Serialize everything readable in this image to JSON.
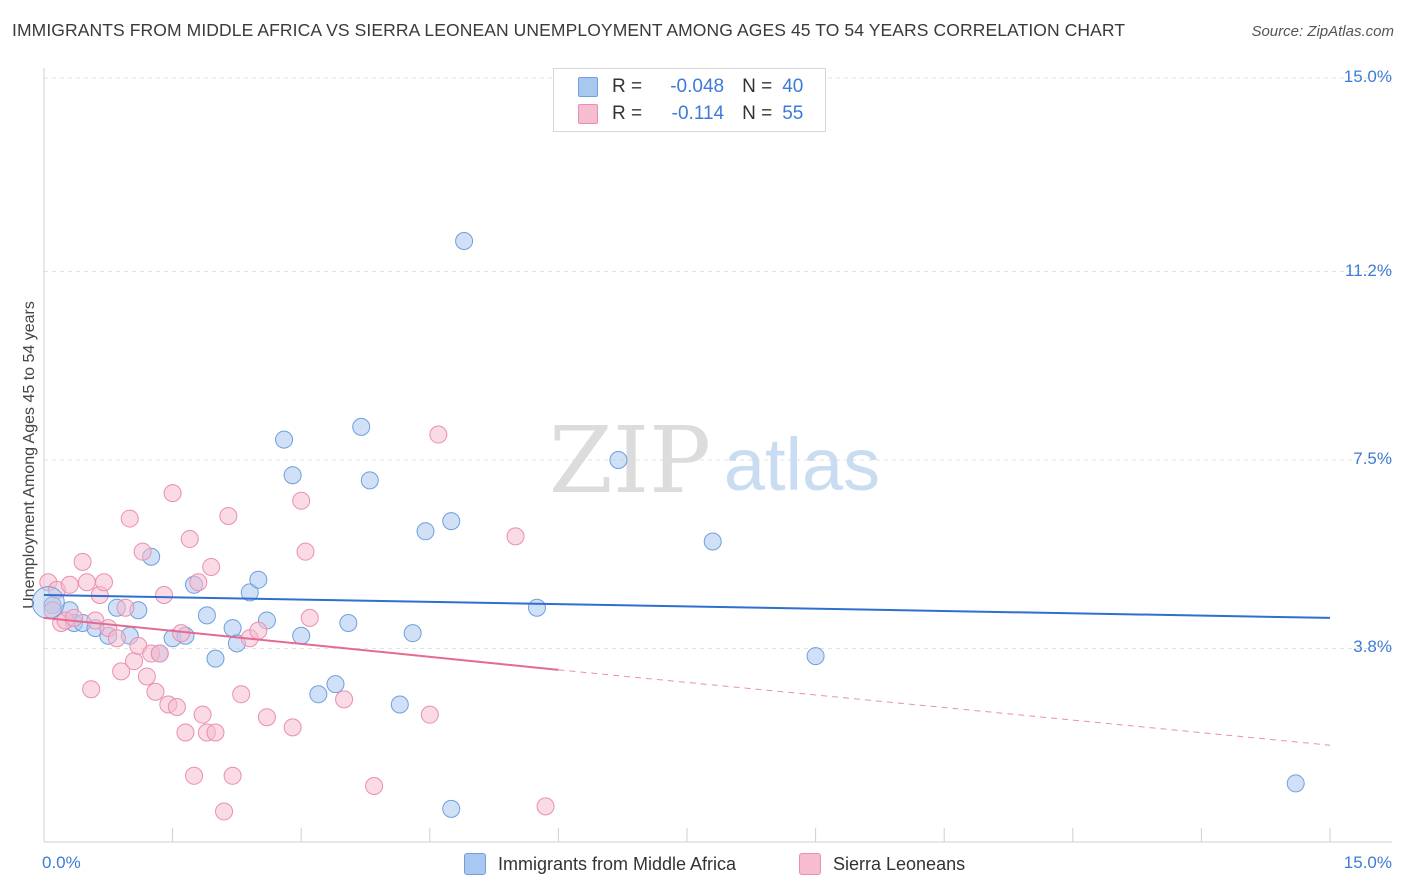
{
  "title": "IMMIGRANTS FROM MIDDLE AFRICA VS SIERRA LEONEAN UNEMPLOYMENT AMONG AGES 45 TO 54 YEARS CORRELATION CHART",
  "source": "Source: ZipAtlas.com",
  "watermark": {
    "zip": "ZIP",
    "atlas": "atlas"
  },
  "legend": {
    "r_label": "R =",
    "n_label": "N =",
    "rows": [
      {
        "r": "-0.048",
        "n": "40",
        "color": "#a9c8f0",
        "border": "#6f9fdc"
      },
      {
        "r": "-0.114",
        "n": "55",
        "color": "#f6bcd0",
        "border": "#e98fb0"
      }
    ]
  },
  "bottom_legend": [
    {
      "label": "Immigrants from Middle Africa",
      "color": "#a9c8f0",
      "border": "#6f9fdc"
    },
    {
      "label": "Sierra Leoneans",
      "color": "#f6bcd0",
      "border": "#e98fb0"
    }
  ],
  "chart_data": {
    "type": "scatter",
    "title": "IMMIGRANTS FROM MIDDLE AFRICA VS SIERRA LEONEAN UNEMPLOYMENT AMONG AGES 45 TO 54 YEARS CORRELATION CHART",
    "xlabel": "",
    "ylabel": "Unemployment Among Ages 45 to 54 years",
    "xlim": [
      0,
      15
    ],
    "ylim": [
      0,
      15.6
    ],
    "x_tick_labels": [
      "0.0%",
      "15.0%"
    ],
    "y_ticks": [
      3.8,
      7.5,
      11.2,
      15.0
    ],
    "y_tick_labels": [
      "3.8%",
      "7.5%",
      "11.2%",
      "15.0%"
    ],
    "series": [
      {
        "name": "Immigrants from Middle Africa",
        "color": "#6f9fdc",
        "fill": "#a9c8f0",
        "r": -0.048,
        "n": 40,
        "trend": {
          "x0": 0.0,
          "y0": 4.85,
          "x1": 15.0,
          "y1": 4.4
        },
        "points": [
          [
            0.1,
            4.65
          ],
          [
            0.3,
            4.55
          ],
          [
            0.35,
            4.3
          ],
          [
            0.45,
            4.3
          ],
          [
            0.6,
            4.2
          ],
          [
            0.75,
            4.05
          ],
          [
            0.85,
            4.6
          ],
          [
            1.0,
            4.05
          ],
          [
            1.1,
            4.55
          ],
          [
            1.25,
            5.6
          ],
          [
            1.35,
            3.7
          ],
          [
            1.5,
            4.0
          ],
          [
            1.65,
            4.05
          ],
          [
            1.75,
            5.05
          ],
          [
            1.9,
            4.45
          ],
          [
            2.0,
            3.6
          ],
          [
            2.2,
            4.2
          ],
          [
            2.25,
            3.9
          ],
          [
            2.4,
            4.9
          ],
          [
            2.5,
            5.15
          ],
          [
            2.6,
            4.35
          ],
          [
            2.8,
            7.9
          ],
          [
            2.9,
            7.2
          ],
          [
            3.0,
            4.05
          ],
          [
            3.2,
            2.9
          ],
          [
            3.4,
            3.1
          ],
          [
            3.55,
            4.3
          ],
          [
            3.7,
            8.15
          ],
          [
            3.8,
            7.1
          ],
          [
            4.15,
            2.7
          ],
          [
            4.3,
            4.1
          ],
          [
            4.45,
            6.1
          ],
          [
            4.75,
            0.65
          ],
          [
            4.75,
            6.3
          ],
          [
            4.9,
            11.8
          ],
          [
            5.75,
            4.6
          ],
          [
            6.7,
            7.5
          ],
          [
            7.8,
            5.9
          ],
          [
            9.0,
            3.65
          ],
          [
            14.6,
            1.15
          ]
        ]
      },
      {
        "name": "Sierra Leoneans",
        "color": "#e98fb0",
        "fill": "#f6bcd0",
        "r": -0.114,
        "n": 55,
        "trend": {
          "x0": 0.0,
          "y0": 4.4,
          "x1": 6.0,
          "y1": 3.38,
          "dash_x1": 15.0,
          "dash_y1": 1.9
        },
        "points": [
          [
            0.05,
            5.1
          ],
          [
            0.1,
            4.55
          ],
          [
            0.15,
            4.95
          ],
          [
            0.2,
            4.3
          ],
          [
            0.25,
            4.35
          ],
          [
            0.3,
            5.05
          ],
          [
            0.35,
            4.4
          ],
          [
            0.45,
            5.5
          ],
          [
            0.5,
            5.1
          ],
          [
            0.55,
            3.0
          ],
          [
            0.6,
            4.35
          ],
          [
            0.65,
            4.85
          ],
          [
            0.7,
            5.1
          ],
          [
            0.75,
            4.2
          ],
          [
            0.85,
            4.0
          ],
          [
            0.9,
            3.35
          ],
          [
            0.95,
            4.6
          ],
          [
            1.0,
            6.35
          ],
          [
            1.05,
            3.55
          ],
          [
            1.1,
            3.85
          ],
          [
            1.15,
            5.7
          ],
          [
            1.2,
            3.25
          ],
          [
            1.25,
            3.7
          ],
          [
            1.3,
            2.95
          ],
          [
            1.35,
            3.7
          ],
          [
            1.4,
            4.85
          ],
          [
            1.45,
            2.7
          ],
          [
            1.5,
            6.85
          ],
          [
            1.55,
            2.65
          ],
          [
            1.6,
            4.1
          ],
          [
            1.65,
            2.15
          ],
          [
            1.7,
            5.95
          ],
          [
            1.75,
            1.3
          ],
          [
            1.8,
            5.1
          ],
          [
            1.85,
            2.5
          ],
          [
            1.9,
            2.15
          ],
          [
            1.95,
            5.4
          ],
          [
            2.0,
            2.15
          ],
          [
            2.1,
            0.6
          ],
          [
            2.15,
            6.4
          ],
          [
            2.2,
            1.3
          ],
          [
            2.3,
            2.9
          ],
          [
            2.4,
            4.0
          ],
          [
            2.5,
            4.15
          ],
          [
            2.6,
            2.45
          ],
          [
            2.9,
            2.25
          ],
          [
            3.0,
            6.7
          ],
          [
            3.05,
            5.7
          ],
          [
            3.1,
            4.4
          ],
          [
            3.5,
            2.8
          ],
          [
            3.85,
            1.1
          ],
          [
            4.5,
            2.5
          ],
          [
            4.6,
            8.0
          ],
          [
            5.5,
            6.0
          ],
          [
            5.85,
            0.7
          ]
        ]
      }
    ]
  }
}
